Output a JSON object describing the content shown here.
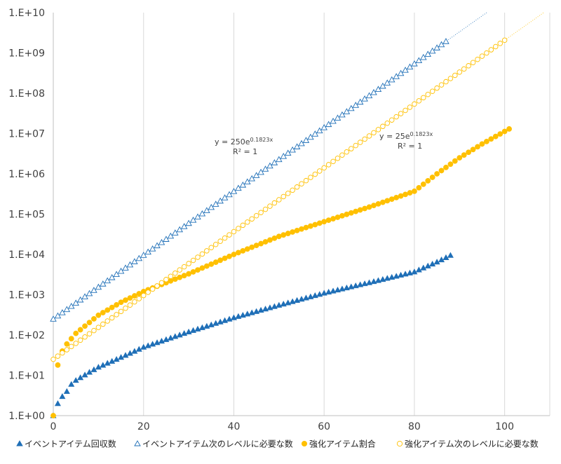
{
  "chart_data": {
    "type": "scatter",
    "title": "",
    "xlabel": "",
    "ylabel": "",
    "x_scale": "linear",
    "y_scale": "log",
    "xlim": [
      0,
      110
    ],
    "ylim": [
      1,
      10000000000
    ],
    "x_ticks": [
      0,
      20,
      40,
      60,
      80,
      100
    ],
    "x_tick_labels": [
      "0",
      "20",
      "40",
      "60",
      "80",
      "100"
    ],
    "y_ticks": [
      1,
      10,
      100,
      1000,
      10000,
      100000,
      1000000,
      10000000,
      100000000,
      1000000000,
      10000000000
    ],
    "y_tick_labels": [
      "1.E+00",
      "1.E+01",
      "1.E+02",
      "1.E+03",
      "1.E+04",
      "1.E+05",
      "1.E+06",
      "1.E+07",
      "1.E+08",
      "1.E+09",
      "1.E+10"
    ],
    "grid": "vertical",
    "legend_position": "bottom",
    "series": [
      {
        "name": "イベントアイテム回収数",
        "marker": "filled-triangle",
        "color": "#1f6fb7",
        "x_range": [
          0,
          88
        ],
        "keypoints": [
          [
            0,
            1
          ],
          [
            1,
            2
          ],
          [
            2,
            3
          ],
          [
            3,
            4
          ],
          [
            4,
            6
          ],
          [
            5,
            7.5
          ],
          [
            8,
            12
          ],
          [
            10,
            16
          ],
          [
            15,
            28
          ],
          [
            20,
            50
          ],
          [
            30,
            120
          ],
          [
            40,
            270
          ],
          [
            50,
            550
          ],
          [
            60,
            1100
          ],
          [
            70,
            2000
          ],
          [
            80,
            3700
          ],
          [
            85,
            6500
          ],
          [
            88,
            9500
          ]
        ]
      },
      {
        "name": "イベントアイテム次のレベルに必要な数",
        "marker": "open-triangle",
        "color": "#1f6fb7",
        "x_range": [
          0,
          87
        ],
        "formula": {
          "a": 250,
          "b": 0.1823
        }
      },
      {
        "name": "強化アイテム割合",
        "marker": "filled-circle",
        "color": "#ffc000",
        "x_range": [
          0,
          101
        ],
        "keypoints": [
          [
            0,
            1
          ],
          [
            1,
            18
          ],
          [
            2,
            40
          ],
          [
            3,
            60
          ],
          [
            5,
            110
          ],
          [
            10,
            310
          ],
          [
            15,
            650
          ],
          [
            20,
            1200
          ],
          [
            30,
            3300
          ],
          [
            40,
            10000
          ],
          [
            50,
            28000
          ],
          [
            60,
            65000
          ],
          [
            70,
            150000
          ],
          [
            80,
            370000
          ],
          [
            85,
            1000000
          ],
          [
            90,
            2500000
          ],
          [
            95,
            5500000
          ],
          [
            101,
            13000000
          ]
        ]
      },
      {
        "name": "強化アイテム次のレベルに必要な数",
        "marker": "open-circle",
        "color": "#ffc000",
        "x_range": [
          0,
          100
        ],
        "formula": {
          "a": 25,
          "b": 0.1823
        }
      }
    ],
    "trendlines": [
      {
        "series": "イベントアイテム次のレベルに必要な数",
        "label_main": "y = 250e",
        "label_exp": "0.1823x",
        "r2": "R² = 1",
        "extends_to": 110
      },
      {
        "series": "強化アイテム次のレベルに必要な数",
        "label_main": "y = 25e",
        "label_exp": "0.1823x",
        "r2": "R² = 1",
        "extends_to": 110
      }
    ]
  }
}
